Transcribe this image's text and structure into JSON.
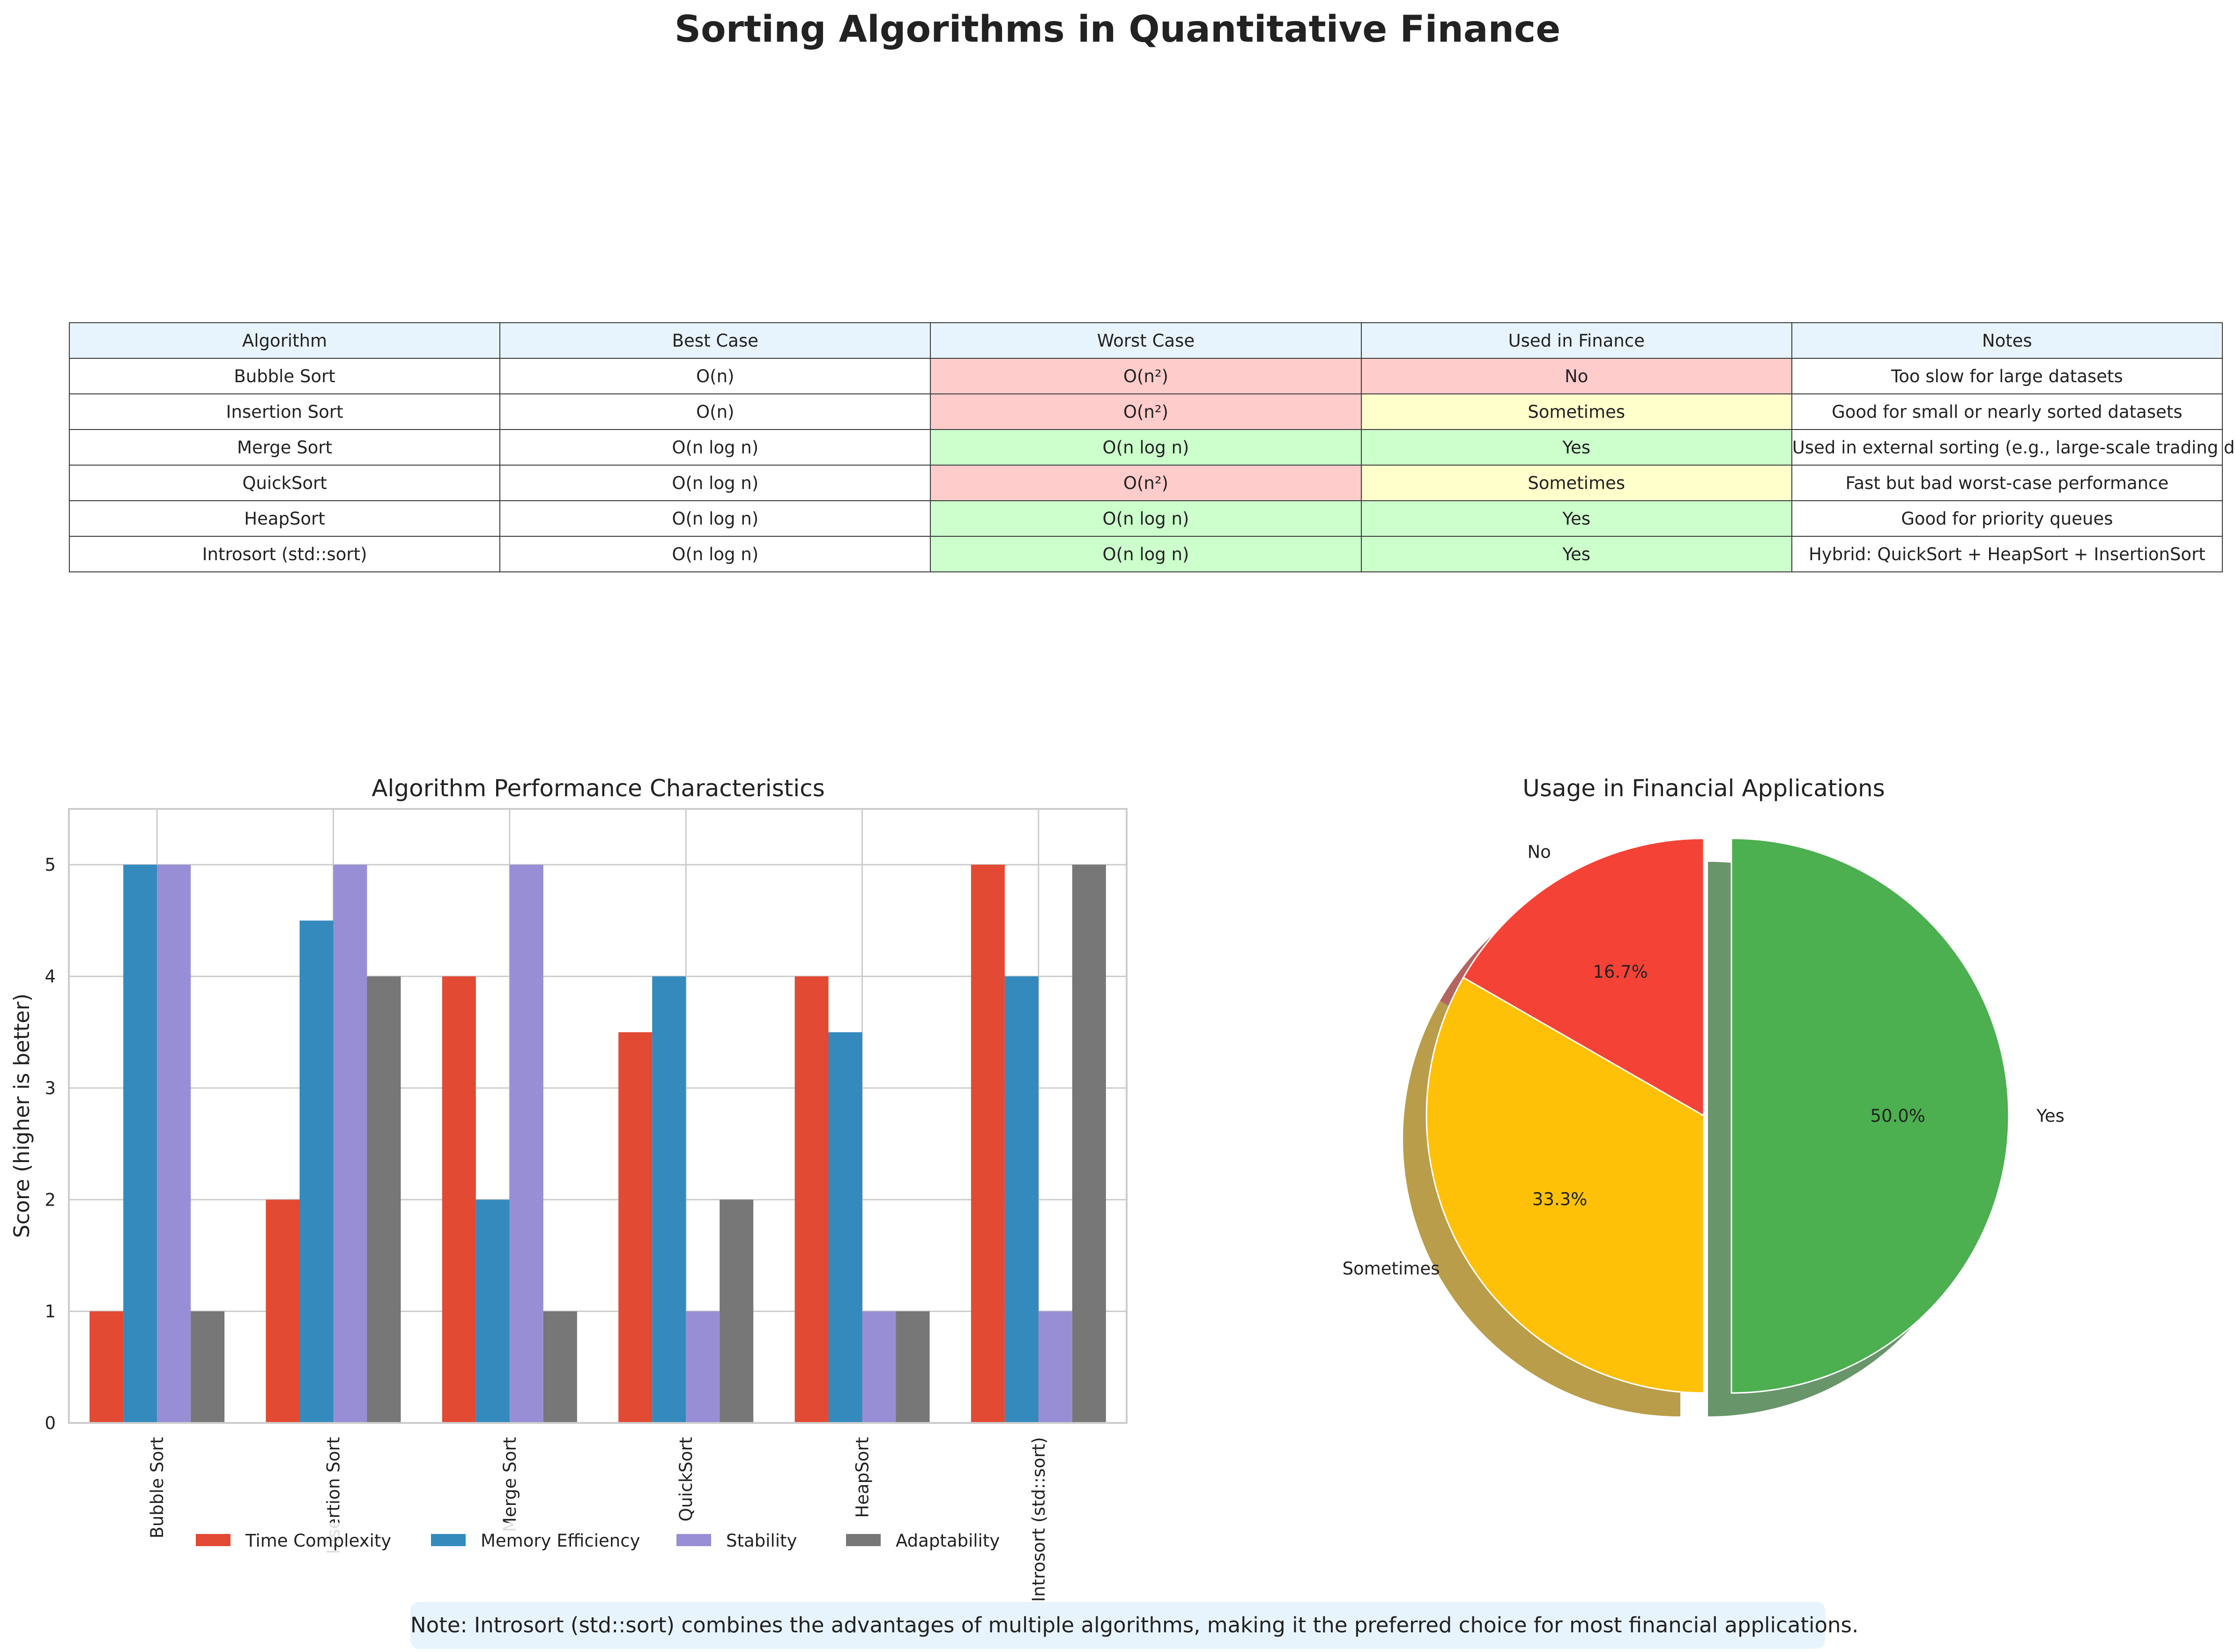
{
  "title": "Sorting Algorithms in Quantitative Finance",
  "table": {
    "headers": [
      "Algorithm",
      "Best Case",
      "Worst Case",
      "Used in Finance",
      "Notes"
    ],
    "rows": [
      [
        "Bubble Sort",
        "O(n)",
        "O(n²)",
        "No",
        "Too slow for large datasets"
      ],
      [
        "Insertion Sort",
        "O(n)",
        "O(n²)",
        "Sometimes",
        "Good for small or nearly sorted datasets"
      ],
      [
        "Merge Sort",
        "O(n log n)",
        "O(n log n)",
        "Yes",
        "Used in external sorting (e.g., large-scale trading data)"
      ],
      [
        "QuickSort",
        "O(n log n)",
        "O(n²)",
        "Sometimes",
        "Fast but bad worst-case performance"
      ],
      [
        "HeapSort",
        "O(n log n)",
        "O(n log n)",
        "Yes",
        "Good for priority queues"
      ],
      [
        "Introsort (std::sort)",
        "O(n log n)",
        "O(n log n)",
        "Yes",
        "Hybrid: QuickSort + HeapSort + InsertionSort"
      ]
    ],
    "colors": {
      "header": "#e8f4fd",
      "bad": "#ffcccc",
      "medium": "#ffffcc",
      "good": "#ccffcc"
    }
  },
  "chart_data": [
    {
      "type": "bar",
      "title": "Algorithm Performance Characteristics",
      "xlabel": "",
      "ylabel": "Score (higher is better)",
      "ylim": [
        0,
        5.5
      ],
      "yticks": [
        0,
        1,
        2,
        3,
        4,
        5
      ],
      "grid": true,
      "legend": "bottom-center",
      "categories": [
        "Bubble Sort",
        "Insertion Sort",
        "Merge Sort",
        "QuickSort",
        "HeapSort",
        "Introsort (std::sort)"
      ],
      "series": [
        {
          "name": "Time Complexity",
          "color": "#e24a33",
          "values": [
            1,
            2,
            4,
            3.5,
            4,
            5
          ]
        },
        {
          "name": "Memory Efficiency",
          "color": "#348abd",
          "values": [
            5,
            4.5,
            2,
            4,
            3.5,
            4
          ]
        },
        {
          "name": "Stability",
          "color": "#988ed5",
          "values": [
            5,
            5,
            5,
            1,
            1,
            1
          ]
        },
        {
          "name": "Adaptability",
          "color": "#777777",
          "values": [
            1,
            4,
            1,
            2,
            1,
            5
          ]
        }
      ]
    },
    {
      "type": "pie",
      "title": "Usage in Financial Applications",
      "slices": [
        {
          "label": "No",
          "value": 16.7,
          "pct_label": "16.7%",
          "color": "#f44336"
        },
        {
          "label": "Sometimes",
          "value": 33.3,
          "pct_label": "33.3%",
          "color": "#ffc107"
        },
        {
          "label": "Yes",
          "value": 50.0,
          "pct_label": "50.0%",
          "color": "#4caf50"
        }
      ],
      "shadow": true,
      "explode": "Yes"
    }
  ],
  "note": "Note: Introsort (std::sort) combines the advantages of multiple algorithms, making it the preferred choice for most financial applications."
}
